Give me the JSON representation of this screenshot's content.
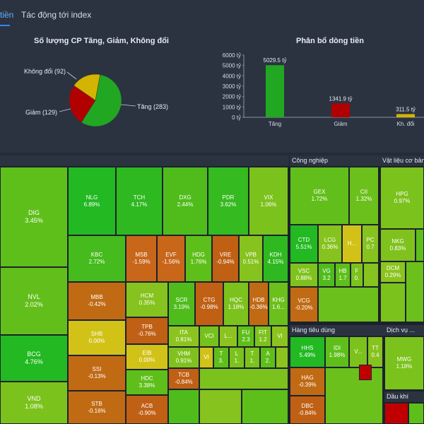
{
  "tabs": [
    {
      "label": "tiền",
      "active": true
    },
    {
      "label": "Tác động tới index",
      "active": false
    }
  ],
  "pie": {
    "title": "Số lượng CP Tăng, Giảm, Không đổi",
    "labels": {
      "flat": "Không đổi (92)",
      "down": "Giảm (129)",
      "up": "Tăng (283)"
    }
  },
  "bar": {
    "title": "Phân bổ dòng tiền",
    "value_labels": [
      "5029.5 tỷ",
      "1341.9 tỷ",
      "311.5 tỷ"
    ],
    "categories": [
      "Tăng",
      "Giảm",
      "Kh. đổi"
    ],
    "yticks": [
      "6000 tỷ",
      "5000 tỷ",
      "4000 tỷ",
      "3000 tỷ",
      "2000 tỷ",
      "1000 tỷ",
      "0 tỷ"
    ]
  },
  "chart_data": [
    {
      "type": "pie",
      "title": "Số lượng CP Tăng, Giảm, Không đổi",
      "categories": [
        "Tăng",
        "Giảm",
        "Không đổi"
      ],
      "values": [
        283,
        129,
        92
      ],
      "colors": [
        "#22a722",
        "#b00000",
        "#d4b400"
      ]
    },
    {
      "type": "bar",
      "title": "Phân bổ dòng tiền",
      "categories": [
        "Tăng",
        "Giảm",
        "Kh. đổi"
      ],
      "values": [
        5029.5,
        1341.9,
        311.5
      ],
      "colors": [
        "#22a722",
        "#b00000",
        "#d4b400"
      ],
      "ylim": [
        0,
        6000
      ]
    }
  ],
  "colors": {
    "up_strong": "#22b922",
    "up": "#5fbf1a",
    "up_light": "#7cc21c",
    "flat": "#d2c218",
    "down_light": "#c8661a",
    "down": "#b8550e",
    "down_strong": "#c00000"
  },
  "sectors": {
    "first": "",
    "industry": "Công nghiệp",
    "materials": "Vật liệu cơ bản",
    "consumer": "Hàng tiêu dùng",
    "services": "Dịch vụ ...",
    "oil": "Dầu khí"
  },
  "tiles": {
    "DIG": {
      "sym": "DIG",
      "pct": "3.45%"
    },
    "NVL": {
      "sym": "NVL",
      "pct": "2.02%"
    },
    "BCG": {
      "sym": "BCG",
      "pct": "4.76%"
    },
    "VND": {
      "sym": "VND",
      "pct": "1.08%"
    },
    "NLG": {
      "sym": "NLG",
      "pct": "6.89%"
    },
    "TCH": {
      "sym": "TCH",
      "pct": "4.17%"
    },
    "DXG": {
      "sym": "DXG",
      "pct": "2.44%"
    },
    "PDR": {
      "sym": "PDR",
      "pct": "3.62%"
    },
    "VIX": {
      "sym": "VIX",
      "pct": "1.06%"
    },
    "KBC": {
      "sym": "KBC",
      "pct": "2.72%"
    },
    "MSB": {
      "sym": "MSB",
      "pct": "-1.59%"
    },
    "EVF": {
      "sym": "EVF",
      "pct": "-1.56%"
    },
    "HDG": {
      "sym": "HDG",
      "pct": "1.76%"
    },
    "VRE": {
      "sym": "VRE",
      "pct": "-0.94%"
    },
    "VPB": {
      "sym": "VPB",
      "pct": "0.51%"
    },
    "KDH": {
      "sym": "KDH",
      "pct": "4.15%"
    },
    "MBB": {
      "sym": "MBB",
      "pct": "-0.42%"
    },
    "HCM": {
      "sym": "HCM",
      "pct": "0.35%"
    },
    "SCR": {
      "sym": "SCR",
      "pct": "3.19%"
    },
    "CTG": {
      "sym": "CTG",
      "pct": "-0.98%"
    },
    "HQC": {
      "sym": "HQC",
      "pct": "1.18%"
    },
    "HDB": {
      "sym": "HDB",
      "pct": "-0.36%"
    },
    "KHG": {
      "sym": "KHG",
      "pct": "1.6..."
    },
    "SHB": {
      "sym": "SHB",
      "pct": "0.00%"
    },
    "TPB": {
      "sym": "TPB",
      "pct": "-0.76%"
    },
    "ITA": {
      "sym": "ITA",
      "pct": "0.81%"
    },
    "VCI": {
      "sym": "VCI",
      "pct": ""
    },
    "L1": {
      "sym": "L...",
      "pct": ""
    },
    "FU": {
      "sym": "FU",
      "pct": "2.3"
    },
    "FIT": {
      "sym": "FIT",
      "pct": "1.2"
    },
    "VI": {
      "sym": "VI",
      "pct": ""
    },
    "SSI": {
      "sym": "SSI",
      "pct": "-0.13%"
    },
    "EIB": {
      "sym": "EIB",
      "pct": "0.00%"
    },
    "VHM": {
      "sym": "VHM",
      "pct": "0.91%"
    },
    "VI2": {
      "sym": "VI",
      "pct": ""
    },
    "T3": {
      "sym": "T",
      "pct": "3."
    },
    "L2": {
      "sym": "L",
      "pct": "1."
    },
    "TT": {
      "sym": "T",
      "pct": "1."
    },
    "A2": {
      "sym": "A",
      "pct": "2."
    },
    "HDC": {
      "sym": "HDC",
      "pct": "3.38%"
    },
    "TCB": {
      "sym": "TCB",
      "pct": "-0.84%"
    },
    "STB": {
      "sym": "STB",
      "pct": "-0.16%"
    },
    "ACB": {
      "sym": "ACB",
      "pct": "-0.90%"
    },
    "GEX": {
      "sym": "GEX",
      "pct": "1.72%"
    },
    "CII": {
      "sym": "CII",
      "pct": "1.32%"
    },
    "CTD": {
      "sym": "CTD",
      "pct": "5.51%"
    },
    "LCG": {
      "sym": "LCG",
      "pct": "0.36%"
    },
    "H": {
      "sym": "H...",
      "pct": ""
    },
    "PC": {
      "sym": "PC",
      "pct": "0.7"
    },
    "VSC": {
      "sym": "VSC",
      "pct": "0.88%"
    },
    "VG": {
      "sym": "VG",
      "pct": "3.2"
    },
    "HB": {
      "sym": "HB",
      "pct": "1.7"
    },
    "F": {
      "sym": "F",
      "pct": "0."
    },
    "VCG": {
      "sym": "VCG",
      "pct": "-0.20%"
    },
    "HPG": {
      "sym": "HPG",
      "pct": "0.97%"
    },
    "NKG": {
      "sym": "NKG",
      "pct": "0.83%"
    },
    "DCM": {
      "sym": "DCM",
      "pct": "0.29%"
    },
    "HHS": {
      "sym": "HHS",
      "pct": "5.49%"
    },
    "IDI": {
      "sym": "IDI",
      "pct": "1.98%"
    },
    "V": {
      "sym": "V...",
      "pct": ""
    },
    "TT2": {
      "sym": "TT",
      "pct": "0.4"
    },
    "HAG": {
      "sym": "HAG",
      "pct": "-0.39%"
    },
    "DBC": {
      "sym": "DBC",
      "pct": "-0.84%"
    },
    "MWG": {
      "sym": "MWG",
      "pct": "1.18%"
    }
  }
}
